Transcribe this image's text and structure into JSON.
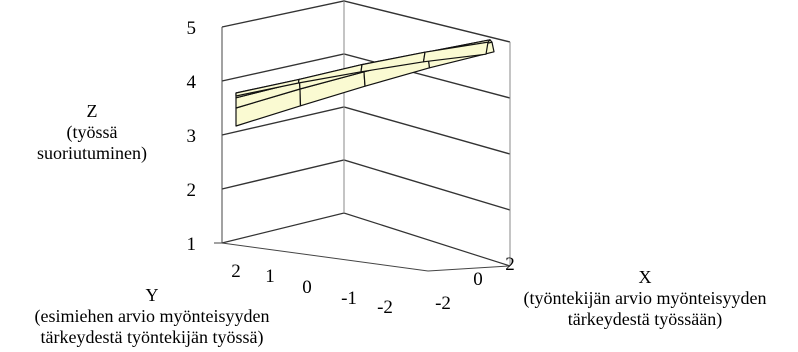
{
  "chart_data": {
    "type": "surface",
    "z_axis": {
      "title_lines": [
        "Z",
        "(työssä",
        "suoriutuminen)"
      ],
      "ticks": [
        "1",
        "2",
        "3",
        "4",
        "5"
      ],
      "range": [
        1,
        5
      ]
    },
    "y_axis": {
      "title_lines": [
        "Y",
        "(esimiehen arvio myönteisyyden",
        "tärkeydestä työntekijän työssä)"
      ],
      "ticks": [
        "2",
        "1",
        "0",
        "-1",
        "-2"
      ],
      "range": [
        -2,
        2
      ]
    },
    "x_axis": {
      "title_lines": [
        "X",
        "(työntekijän arvio myönteisyyden",
        "tärkeydestä työssään)"
      ],
      "ticks": [
        "2",
        "0",
        "-2"
      ],
      "range": [
        -2,
        2
      ]
    },
    "grid": true,
    "surface_color": "#fafad2",
    "surface": {
      "x": [
        -2,
        -1,
        0,
        1,
        2
      ],
      "y": [
        2,
        1,
        0,
        -1,
        -2
      ],
      "z": [
        [
          3.05,
          3.22,
          3.38,
          3.52,
          3.62
        ],
        [
          3.35,
          3.5,
          3.62,
          3.72,
          3.78
        ],
        [
          3.52,
          3.62,
          3.72,
          3.78,
          3.82
        ],
        [
          3.6,
          3.66,
          3.74,
          3.78,
          3.78
        ],
        [
          3.55,
          3.6,
          3.62,
          3.62,
          3.58
        ]
      ]
    }
  }
}
